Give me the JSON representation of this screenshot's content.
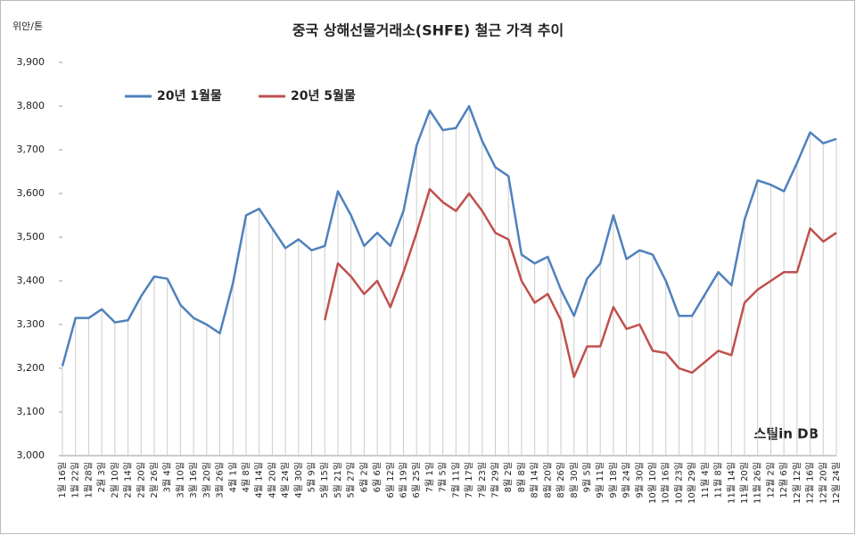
{
  "chart_data": {
    "type": "line",
    "title": "중국 상해선물거래소(SHFE) 철근 가격 추이",
    "y_label": "위안/톤",
    "watermark": "스틸in DB",
    "categories": [
      "1월 16일",
      "1월 22일",
      "1월 28일",
      "2월 3일",
      "2월 10일",
      "2월 14일",
      "2월 20일",
      "2월 26일",
      "3월 4일",
      "3월 10일",
      "3월 16일",
      "3월 20일",
      "3월 26일",
      "4월 1일",
      "4월 8일",
      "4월 14일",
      "4월 20일",
      "4월 24일",
      "4월 30일",
      "5월 9일",
      "5월 15일",
      "5월 21일",
      "5월 27일",
      "6월 2일",
      "6월 6일",
      "6월 12일",
      "6월 19일",
      "6월 25일",
      "7월 1일",
      "7월 5일",
      "7월 11일",
      "7월 17일",
      "7월 23일",
      "7월 29일",
      "8월 2일",
      "8월 8일",
      "8월 14일",
      "8월 20일",
      "8월 26일",
      "8월 30일",
      "9월 5일",
      "9월 11일",
      "9월 18일",
      "9월 24일",
      "9월 30일",
      "10월 10일",
      "10월 16일",
      "10월 23일",
      "10월 29일",
      "11월 4일",
      "11월 8일",
      "11월 14일",
      "11월 20일",
      "11월 26일",
      "12월 2일",
      "12월 6일",
      "12월 12일",
      "12월 16일",
      "12월 20일",
      "12월 24일"
    ],
    "series": [
      {
        "name": "20년 1월물",
        "color": "#4f81bd",
        "values": [
          3205,
          3315,
          3315,
          3335,
          3305,
          3310,
          3365,
          3410,
          3405,
          3345,
          3315,
          3300,
          3280,
          3395,
          3550,
          3565,
          3520,
          3475,
          3495,
          3470,
          3480,
          3605,
          3550,
          3480,
          3510,
          3480,
          3560,
          3710,
          3790,
          3745,
          3750,
          3800,
          3720,
          3660,
          3640,
          3460,
          3440,
          3455,
          3380,
          3320,
          3405,
          3440,
          3550,
          3450,
          3470,
          3460,
          3400,
          3320,
          3320,
          3370,
          3420,
          3390,
          3540,
          3630,
          3620,
          3605,
          3670,
          3740,
          3715,
          3725
        ]
      },
      {
        "name": "20년 5월물",
        "color": "#c0504d",
        "values": [
          null,
          null,
          null,
          null,
          null,
          null,
          null,
          null,
          null,
          null,
          null,
          null,
          null,
          null,
          null,
          null,
          null,
          null,
          null,
          null,
          3310,
          3440,
          3410,
          3370,
          3400,
          3340,
          3420,
          3510,
          3610,
          3580,
          3560,
          3600,
          3560,
          3510,
          3495,
          3400,
          3350,
          3370,
          3310,
          3180,
          3250,
          3250,
          3340,
          3290,
          3300,
          3240,
          3235,
          3200,
          3190,
          3215,
          3240,
          3230,
          3350,
          3380,
          3400,
          3420,
          3420,
          3520,
          3490,
          3510
        ]
      }
    ],
    "ylim": [
      3000,
      3900
    ],
    "yticks": [
      {
        "value": 3000,
        "label": "3,000"
      },
      {
        "value": 3100,
        "label": "3,100"
      },
      {
        "value": 3200,
        "label": "3,200"
      },
      {
        "value": 3300,
        "label": "3,300"
      },
      {
        "value": 3400,
        "label": "3,400"
      },
      {
        "value": 3500,
        "label": "3,500"
      },
      {
        "value": 3600,
        "label": "3,600"
      },
      {
        "value": 3700,
        "label": "3,700"
      },
      {
        "value": 3800,
        "label": "3,800"
      },
      {
        "value": 3900,
        "label": "3,900"
      }
    ],
    "drop_lines": true,
    "legend": "top-left"
  }
}
